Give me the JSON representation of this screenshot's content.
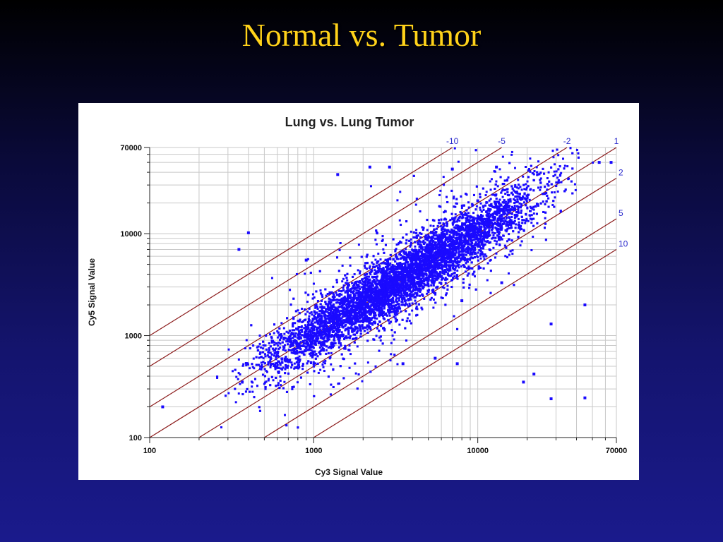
{
  "slide": {
    "title": "Normal vs. Tumor"
  },
  "colors": {
    "title_text": "#ffd21a",
    "background_top": "#000000",
    "background_bottom": "#1a1a8c",
    "points": "#1a0aff",
    "reference_lines": "#8b1a1a",
    "reference_labels": "#2a2acc",
    "grid": "#c8c8c8"
  },
  "chart_data": {
    "type": "scatter",
    "title": "Lung vs. Lung Tumor",
    "xlabel": "Cy3 Signal Value",
    "ylabel": "Cy5 Signal Value",
    "xscale": "log",
    "yscale": "log",
    "xlim": [
      100,
      70000
    ],
    "ylim": [
      100,
      70000
    ],
    "x_tick_labels": [
      "100",
      "1000",
      "10000",
      "70000"
    ],
    "y_tick_labels": [
      "70000",
      "10000",
      "1000",
      "100"
    ],
    "grid": true,
    "legend": "none",
    "reference_lines": [
      {
        "label": "-10",
        "fold": 10
      },
      {
        "label": "-5",
        "fold": 5
      },
      {
        "label": "-2",
        "fold": 2
      },
      {
        "label": "1",
        "fold": 1
      },
      {
        "label": "2",
        "fold": 0.5
      },
      {
        "label": "5",
        "fold": 0.2
      },
      {
        "label": "10",
        "fold": 0.1
      }
    ],
    "series": [
      {
        "points_estimated": 9000,
        "dense_band": {
          "x_range": [
            220,
            55000
          ],
          "spread_log10_sd": 0.14
        },
        "outliers": [
          {
            "x": 1400,
            "y": 38000
          },
          {
            "x": 400,
            "y": 10200
          },
          {
            "x": 350,
            "y": 7000
          },
          {
            "x": 2200,
            "y": 45000
          },
          {
            "x": 2900,
            "y": 45000
          },
          {
            "x": 7000,
            "y": 43000
          },
          {
            "x": 13000,
            "y": 45000
          },
          {
            "x": 55000,
            "y": 50000
          },
          {
            "x": 65000,
            "y": 50000
          },
          {
            "x": 45000,
            "y": 2000
          },
          {
            "x": 28000,
            "y": 1300
          },
          {
            "x": 22000,
            "y": 420
          },
          {
            "x": 28000,
            "y": 240
          },
          {
            "x": 45000,
            "y": 245
          },
          {
            "x": 19000,
            "y": 350
          },
          {
            "x": 8000,
            "y": 2200
          },
          {
            "x": 5500,
            "y": 600
          },
          {
            "x": 3500,
            "y": 530
          },
          {
            "x": 7500,
            "y": 530
          },
          {
            "x": 14000,
            "y": 3300
          },
          {
            "x": 120,
            "y": 200
          },
          {
            "x": 6000,
            "y": 3800
          },
          {
            "x": 10000,
            "y": 21000
          },
          {
            "x": 900,
            "y": 5500
          }
        ]
      }
    ]
  }
}
